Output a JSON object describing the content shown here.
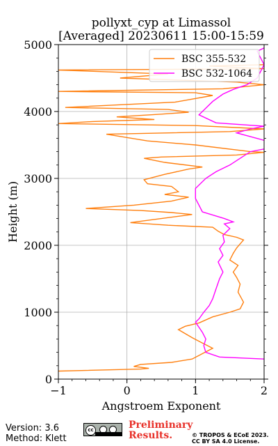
{
  "header": {
    "title_line1": "pollyxt_cyp at Limassol",
    "title_line2": "[Averaged] 20230611 15:00-15:59"
  },
  "footer": {
    "version": "Version: 3.6",
    "method": "Method: Klett",
    "preliminary_line1": "Preliminary",
    "preliminary_line2": "Results.",
    "copyright_line1": "© TROPOS & ECoE 2023.",
    "copyright_line2": "CC BY SA 4.0 License.",
    "license_badge": {
      "cc": "cc",
      "icons": [
        "cc-icon",
        "by-icon",
        "sa-icon"
      ]
    }
  },
  "colors": {
    "orange": "#ff7f0e",
    "magenta": "#ff00ff",
    "grid": "#b0b0b0",
    "preliminary": "#e8312a"
  },
  "chart_data": {
    "type": "line",
    "title": "pollyxt_cyp at Limassol [Averaged] 20230611 15:00-15:59",
    "xlabel": "Angstroem Exponent",
    "ylabel": "Height (m)",
    "xlim": [
      -1,
      2
    ],
    "ylim": [
      0,
      5000
    ],
    "xticks": [
      -1,
      0,
      1,
      2
    ],
    "yticks": [
      0,
      1000,
      2000,
      3000,
      4000,
      5000
    ],
    "grid": true,
    "legend_position": "top-right",
    "series": [
      {
        "name": "BSC 355-532",
        "color": "#ff7f0e",
        "points": [
          [
            -1.0,
            120
          ],
          [
            0.2,
            150
          ],
          [
            0.32,
            160
          ],
          [
            0.1,
            190
          ],
          [
            0.2,
            220
          ],
          [
            0.65,
            250
          ],
          [
            0.95,
            300
          ],
          [
            1.1,
            380
          ],
          [
            1.25,
            460
          ],
          [
            1.1,
            540
          ],
          [
            0.95,
            620
          ],
          [
            0.75,
            740
          ],
          [
            0.85,
            790
          ],
          [
            1.05,
            840
          ],
          [
            1.25,
            930
          ],
          [
            1.5,
            1000
          ],
          [
            1.65,
            1050
          ],
          [
            1.7,
            1150
          ],
          [
            1.62,
            1300
          ],
          [
            1.65,
            1420
          ],
          [
            1.6,
            1520
          ],
          [
            1.55,
            1600
          ],
          [
            1.62,
            1700
          ],
          [
            1.5,
            1780
          ],
          [
            1.55,
            1880
          ],
          [
            1.6,
            1960
          ],
          [
            1.7,
            2080
          ],
          [
            1.6,
            2120
          ],
          [
            1.42,
            2160
          ],
          [
            1.33,
            2210
          ],
          [
            1.25,
            2270
          ],
          [
            0.6,
            2300
          ],
          [
            0.05,
            2340
          ],
          [
            0.95,
            2460
          ],
          [
            0.65,
            2490
          ],
          [
            0.2,
            2520
          ],
          [
            -0.6,
            2550
          ],
          [
            0.1,
            2600
          ],
          [
            0.65,
            2660
          ],
          [
            0.9,
            2720
          ],
          [
            0.55,
            2760
          ],
          [
            0.75,
            2800
          ],
          [
            0.65,
            2880
          ],
          [
            0.3,
            2920
          ],
          [
            0.25,
            2980
          ],
          [
            0.55,
            3060
          ],
          [
            0.9,
            3140
          ],
          [
            1.1,
            3170
          ],
          [
            0.55,
            3240
          ],
          [
            0.25,
            3300
          ],
          [
            0.5,
            3320
          ],
          [
            1.6,
            3350
          ],
          [
            2.0,
            3390
          ],
          [
            1.8,
            3400
          ],
          [
            1.0,
            3500
          ],
          [
            0.3,
            3560
          ],
          [
            -0.3,
            3660
          ],
          [
            1.5,
            3700
          ],
          [
            2.0,
            3740
          ],
          [
            1.0,
            3790
          ],
          [
            -1.0,
            3820
          ],
          [
            -0.5,
            3850
          ],
          [
            0.4,
            3880
          ],
          [
            -0.15,
            3920
          ],
          [
            0.5,
            3960
          ],
          [
            0.9,
            3990
          ],
          [
            0.6,
            4030
          ],
          [
            -0.9,
            4060
          ],
          [
            0.7,
            4140
          ],
          [
            1.25,
            4240
          ],
          [
            1.0,
            4280
          ],
          [
            -1.0,
            4300
          ],
          [
            1.4,
            4340
          ],
          [
            2.0,
            4400
          ],
          [
            1.6,
            4440
          ],
          [
            -0.1,
            4500
          ],
          [
            0.6,
            4560
          ],
          [
            -1.0,
            4620
          ],
          [
            2.0,
            4640
          ],
          [
            1.2,
            4680
          ],
          [
            2.0,
            4700
          ]
        ]
      },
      {
        "name": "BSC 532-1064",
        "color": "#ff00ff",
        "points": [
          [
            2.0,
            300
          ],
          [
            1.35,
            330
          ],
          [
            1.15,
            400
          ],
          [
            1.12,
            500
          ],
          [
            1.15,
            600
          ],
          [
            1.1,
            700
          ],
          [
            1.0,
            850
          ],
          [
            1.05,
            900
          ],
          [
            1.12,
            1000
          ],
          [
            1.2,
            1100
          ],
          [
            1.25,
            1200
          ],
          [
            1.3,
            1350
          ],
          [
            1.35,
            1500
          ],
          [
            1.4,
            1600
          ],
          [
            1.33,
            1750
          ],
          [
            1.4,
            1850
          ],
          [
            1.35,
            1950
          ],
          [
            1.42,
            2050
          ],
          [
            1.4,
            2150
          ],
          [
            1.5,
            2250
          ],
          [
            1.42,
            2320
          ],
          [
            1.55,
            2350
          ],
          [
            1.42,
            2400
          ],
          [
            1.1,
            2500
          ],
          [
            1.05,
            2600
          ],
          [
            1.0,
            2700
          ],
          [
            1.0,
            2850
          ],
          [
            1.15,
            3000
          ],
          [
            1.3,
            3100
          ],
          [
            1.5,
            3200
          ],
          [
            1.65,
            3300
          ],
          [
            1.8,
            3400
          ],
          [
            2.0,
            3440
          ],
          [
            2.1,
            3500
          ],
          [
            2.0,
            3570
          ],
          [
            1.6,
            3680
          ],
          [
            1.8,
            3740
          ],
          [
            2.0,
            3780
          ],
          [
            1.3,
            3830
          ],
          [
            1.05,
            3950
          ],
          [
            1.15,
            4050
          ],
          [
            1.25,
            4150
          ],
          [
            1.4,
            4260
          ],
          [
            1.55,
            4330
          ],
          [
            1.75,
            4400
          ],
          [
            1.9,
            4500
          ],
          [
            2.0,
            4700
          ],
          [
            1.9,
            4900
          ],
          [
            2.0,
            4950
          ]
        ]
      }
    ]
  }
}
